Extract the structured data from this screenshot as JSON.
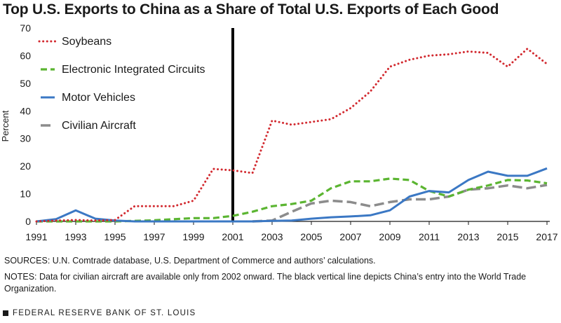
{
  "chart_data": {
    "type": "line",
    "title": "Top U.S. Exports to China as a Share of Total U.S. Exports of Each Good",
    "xlabel": "",
    "ylabel": "Percent",
    "xlim": [
      1991,
      2017
    ],
    "ylim": [
      0,
      70
    ],
    "x_ticks": [
      1991,
      1993,
      1995,
      1997,
      1999,
      2001,
      2003,
      2005,
      2007,
      2009,
      2011,
      2013,
      2015,
      2017
    ],
    "y_ticks": [
      0,
      10,
      20,
      30,
      40,
      50,
      60,
      70
    ],
    "grid": false,
    "legend_position": "top-left",
    "vertical_marker": {
      "x": 2001,
      "color": "#000000"
    },
    "series": [
      {
        "name": "Soybeans",
        "color": "#d2292f",
        "style": "dotted",
        "x": [
          1991,
          1992,
          1993,
          1994,
          1995,
          1996,
          1997,
          1998,
          1999,
          2000,
          2001,
          2002,
          2003,
          2004,
          2005,
          2006,
          2007,
          2008,
          2009,
          2010,
          2011,
          2012,
          2013,
          2014,
          2015,
          2016,
          2017
        ],
        "y": [
          0,
          0.3,
          0.5,
          0.3,
          0.5,
          5.5,
          5.5,
          5.5,
          7.5,
          19,
          18.5,
          17.5,
          36.5,
          35,
          36,
          37,
          41,
          47,
          56,
          58.5,
          60,
          60.5,
          61.5,
          61,
          56,
          62.5,
          57
        ]
      },
      {
        "name": "Electronic Integrated Circuits",
        "color": "#5bb531",
        "style": "dashed",
        "x": [
          1991,
          1992,
          1993,
          1994,
          1995,
          1996,
          1997,
          1998,
          1999,
          2000,
          2001,
          2002,
          2003,
          2004,
          2005,
          2006,
          2007,
          2008,
          2009,
          2010,
          2011,
          2012,
          2013,
          2014,
          2015,
          2016,
          2017
        ],
        "y": [
          0,
          0,
          0,
          0,
          0,
          0.2,
          0.4,
          0.8,
          1.2,
          1.2,
          2,
          3.5,
          5.5,
          6.3,
          7.5,
          12,
          14.5,
          14.5,
          15.5,
          15,
          11,
          9,
          11.5,
          13,
          15,
          14.8,
          13.8
        ]
      },
      {
        "name": "Motor Vehicles",
        "color": "#3b78c4",
        "style": "solid",
        "x": [
          1991,
          1992,
          1993,
          1994,
          1995,
          1996,
          1997,
          1998,
          1999,
          2000,
          2001,
          2002,
          2003,
          2004,
          2005,
          2006,
          2007,
          2008,
          2009,
          2010,
          2011,
          2012,
          2013,
          2014,
          2015,
          2016,
          2017
        ],
        "y": [
          0,
          0.8,
          4,
          1,
          0.3,
          0,
          0,
          0,
          0,
          0,
          0,
          0,
          0.2,
          0.3,
          1,
          1.5,
          1.8,
          2.2,
          4,
          9,
          11,
          10.5,
          15,
          18,
          16.5,
          16.5,
          19.2
        ]
      },
      {
        "name": "Civilian Aircraft",
        "color": "#8c8c8c",
        "style": "longdash",
        "x": [
          2002,
          2003,
          2004,
          2005,
          2006,
          2007,
          2008,
          2009,
          2010,
          2011,
          2012,
          2013,
          2014,
          2015,
          2016,
          2017
        ],
        "y": [
          0,
          0.3,
          3.5,
          6.5,
          7.5,
          7,
          5.5,
          7,
          8,
          8,
          9,
          11.5,
          12,
          13,
          12,
          13.2
        ]
      }
    ]
  },
  "sources_text": "SOURCES: U.N. Comtrade database, U.S. Department of Commerce and authors’ calculations.",
  "notes_text": "NOTES: Data for civilian aircraft are available only from 2002 onward. The black vertical line depicts China’s entry into the World Trade Organization.",
  "footer_text": "FEDERAL RESERVE BANK OF ST. LOUIS"
}
